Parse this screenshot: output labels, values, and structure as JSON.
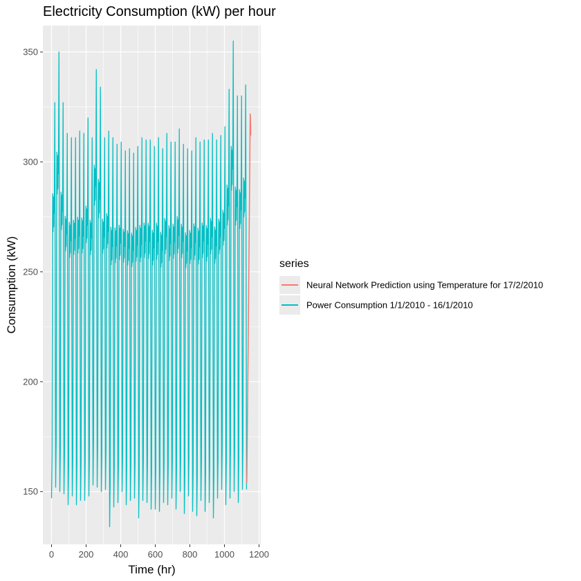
{
  "chart_data": {
    "type": "line",
    "title": "Electricity Consumption (kW) per hour",
    "xlabel": "Time (hr)",
    "ylabel": "Consumption (kW)",
    "xlim": [
      -50,
      1210
    ],
    "ylim": [
      126,
      362
    ],
    "x_ticks": [
      0,
      200,
      400,
      600,
      800,
      1000,
      1200
    ],
    "y_ticks": [
      150,
      200,
      250,
      300,
      350
    ],
    "grid": true,
    "legend": {
      "title": "series",
      "placement": "right"
    },
    "series": [
      {
        "name": "Neural Network Prediction using Temperature for 17/2/2010",
        "color": "#F8766D",
        "x_range": [
          1129,
          1152
        ],
        "pattern": "single rise",
        "min_kw": 154,
        "max_kw": 324,
        "end_kw": 312
      },
      {
        "name": "Power Consumption 1/1/2010 - 16/1/2010",
        "color": "#00BFC4",
        "x_range": [
          0,
          1128
        ],
        "pattern": "daily cycle, 24 h period",
        "daily_peaks_kw": [
          327,
          350,
          327,
          313,
          311,
          311,
          314,
          313,
          320,
          311,
          342,
          334,
          311,
          314,
          311,
          308,
          309,
          305,
          306,
          304,
          307,
          311,
          310,
          310,
          307,
          311,
          306,
          313,
          309,
          309,
          315,
          308,
          306,
          305,
          311,
          309,
          310,
          310,
          313,
          310,
          312,
          316,
          333,
          355,
          330,
          330,
          335
        ],
        "daily_troughs_kw": [
          147,
          152,
          150,
          149,
          144,
          148,
          144,
          146,
          146,
          148,
          153,
          152,
          150,
          151,
          134,
          143,
          145,
          150,
          144,
          146,
          147,
          138,
          146,
          145,
          142,
          142,
          141,
          145,
          144,
          147,
          142,
          150,
          140,
          148,
          141,
          139,
          146,
          141,
          145,
          138,
          147,
          151,
          144,
          147,
          150,
          145,
          151
        ]
      }
    ]
  }
}
